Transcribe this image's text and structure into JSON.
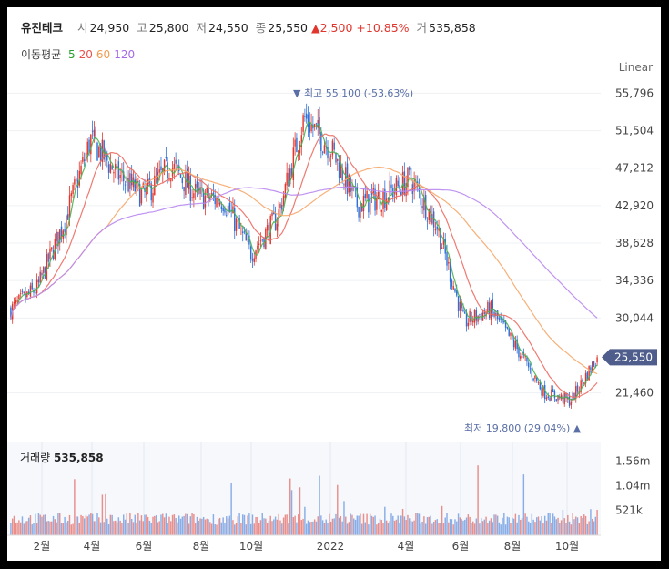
{
  "header": {
    "name": "유진테크",
    "open_label": "시",
    "open": "24,950",
    "high_label": "고",
    "high": "25,800",
    "low_label": "저",
    "low": "24,550",
    "close_label": "종",
    "close": "25,550",
    "change": "2,500",
    "change_pct": "+10.85%",
    "volume_label": "거",
    "volume": "535,858"
  },
  "ma_legend": {
    "label": "이동평균",
    "periods": [
      {
        "text": "5",
        "color": "#2ca02c"
      },
      {
        "text": "20",
        "color": "#e8524a"
      },
      {
        "text": "60",
        "color": "#f39a4d"
      },
      {
        "text": "120",
        "color": "#a569e8"
      }
    ]
  },
  "scale_mode": "Linear",
  "colors": {
    "up": "#e0362d",
    "down": "#2f6fd6",
    "ma5": "#4caf50",
    "ma20": "#ec6b62",
    "ma60": "#f6a769",
    "ma120": "#b988f0",
    "price_badge": "#4e5d8c"
  },
  "price_axis": {
    "ylim": [
      18500,
      57300
    ],
    "ticks": [
      "55,796",
      "51,504",
      "47,212",
      "42,920",
      "38,628",
      "34,336",
      "30,044",
      "21,460"
    ],
    "tick_values": [
      55796,
      51504,
      47212,
      42920,
      38628,
      34336,
      30044,
      21460
    ],
    "current_value": "25,550"
  },
  "annotations": {
    "high": "최고 55,100 (-53.63%)",
    "low": "최저 19,800 (29.04%)"
  },
  "volume_panel": {
    "label": "거래량",
    "value": "535,858",
    "ticks": [
      "1.56m",
      "1.04m",
      "521k"
    ]
  },
  "x_axis": {
    "ticks": [
      "2월",
      "4월",
      "6월",
      "8월",
      "10월",
      "2022",
      "4월",
      "6월",
      "8월",
      "10월"
    ]
  },
  "chart_data": {
    "type": "candlestick",
    "x": [
      "2021-01",
      "2021-02",
      "2021-03",
      "2021-04",
      "2021-05",
      "2021-06",
      "2021-07",
      "2021-08",
      "2021-09",
      "2021-10",
      "2021-11",
      "2021-12",
      "2022-01",
      "2022-02",
      "2022-03",
      "2022-04",
      "2022-05",
      "2022-06",
      "2022-07",
      "2022-08",
      "2022-09",
      "2022-10",
      "2022-11"
    ],
    "close_approx": [
      31000,
      33500,
      41000,
      50500,
      46500,
      44000,
      47500,
      44000,
      43500,
      37500,
      41500,
      53000,
      49500,
      43000,
      44000,
      46000,
      40500,
      29500,
      31000,
      26500,
      21500,
      20500,
      25550
    ],
    "high": 55100,
    "low": 19800,
    "last": {
      "open": 24950,
      "high": 25800,
      "low": 24550,
      "close": 25550,
      "volume": 535858
    }
  }
}
